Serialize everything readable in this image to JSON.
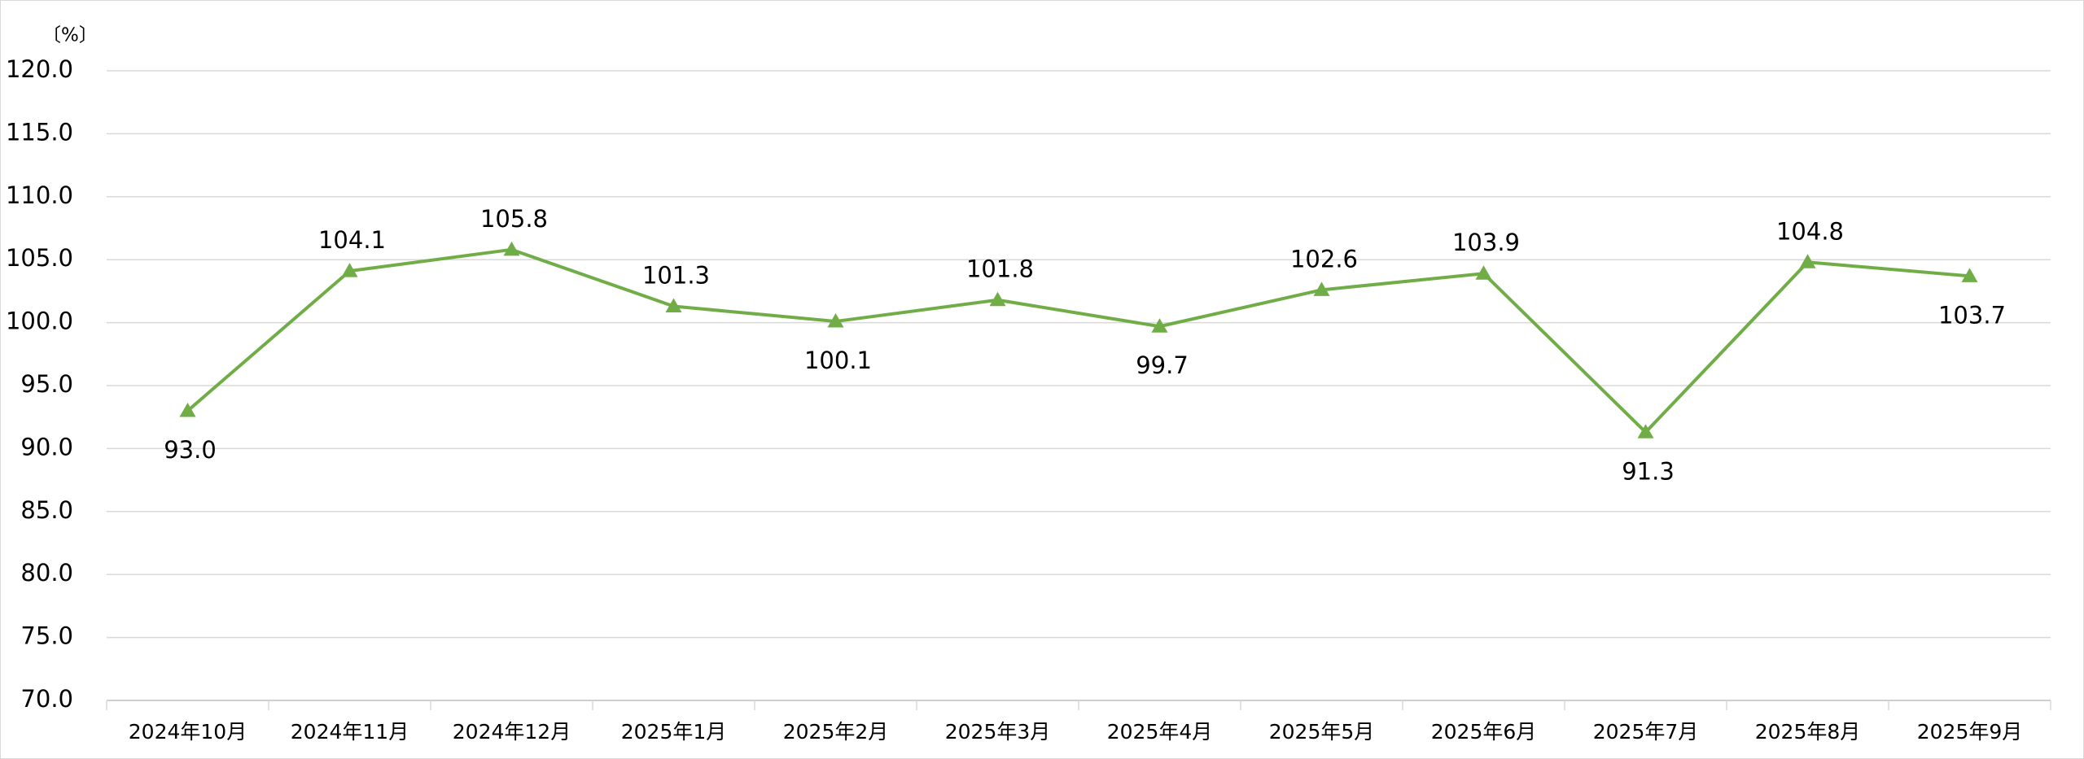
{
  "chart_data": {
    "type": "line",
    "y_unit": "〔%〕",
    "categories": [
      "2024年10月",
      "2024年11月",
      "2024年12月",
      "2025年1月",
      "2025年2月",
      "2025年3月",
      "2025年4月",
      "2025年5月",
      "2025年6月",
      "2025年7月",
      "2025年8月",
      "2025年9月"
    ],
    "series": [
      {
        "color": "#70ad47",
        "values": [
          93.0,
          104.1,
          105.8,
          101.3,
          100.1,
          101.8,
          99.7,
          102.6,
          103.9,
          91.3,
          104.8,
          103.7
        ],
        "value_labels": [
          "93.0",
          "104.1",
          "105.8",
          "101.3",
          "100.1",
          "101.8",
          "99.7",
          "102.6",
          "103.9",
          "91.3",
          "104.8",
          "103.7"
        ]
      }
    ],
    "ylim": [
      70,
      120
    ],
    "yticks": [
      {
        "value": 70,
        "label": "70.0"
      },
      {
        "value": 75,
        "label": "75.0"
      },
      {
        "value": 80,
        "label": "80.0"
      },
      {
        "value": 85,
        "label": "85.0"
      },
      {
        "value": 90,
        "label": "90.0"
      },
      {
        "value": 95,
        "label": "95.0"
      },
      {
        "value": 100,
        "label": "100.0"
      },
      {
        "value": 105,
        "label": "105.0"
      },
      {
        "value": 110,
        "label": "110.0"
      },
      {
        "value": 115,
        "label": "115.0"
      },
      {
        "value": 120,
        "label": "120.0"
      }
    ],
    "grid": true,
    "marker": "triangle"
  }
}
